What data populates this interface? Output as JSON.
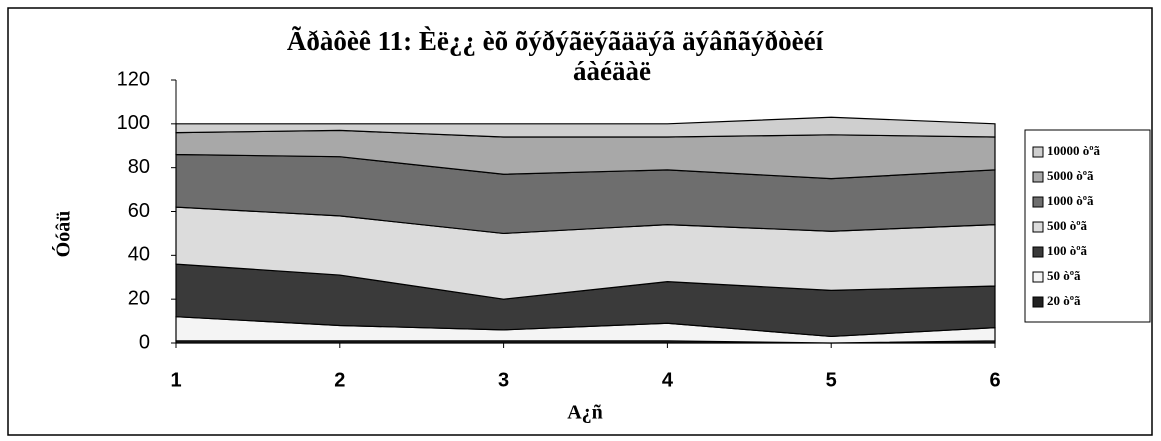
{
  "chart_data": {
    "type": "stacked_area",
    "title": [
      "Ãðàôèê 11: Èë¿¿ èõ õýðýãëýãääýã äýâñãýðòèéí",
      "áàéäàë"
    ],
    "y_label": "Óóâü",
    "x_label": "A¿ñ",
    "x": [
      1,
      2,
      3,
      4,
      5,
      6
    ],
    "xlim": [
      1,
      6
    ],
    "xticks": [
      1,
      2,
      3,
      4,
      5,
      6
    ],
    "ylim": [
      0,
      120
    ],
    "yticks": [
      0,
      20,
      40,
      60,
      80,
      100,
      120
    ],
    "series": [
      {
        "name": "20 òºã",
        "color": "#222222",
        "values": [
          1,
          1,
          1,
          1,
          0,
          1
        ]
      },
      {
        "name": "50 òºã",
        "color": "#f4f4f4",
        "values": [
          11,
          7,
          5,
          8,
          3,
          6
        ]
      },
      {
        "name": "100 òºã",
        "color": "#3a3a3a",
        "values": [
          24,
          23,
          14,
          19,
          21,
          19
        ]
      },
      {
        "name": "500 òºã",
        "color": "#dcdcdc",
        "values": [
          26,
          27,
          30,
          26,
          27,
          28
        ]
      },
      {
        "name": "1000 òºã",
        "color": "#6e6e6e",
        "values": [
          24,
          27,
          27,
          25,
          24,
          25
        ]
      },
      {
        "name": "5000 òºã",
        "color": "#a8a8a8",
        "values": [
          10,
          12,
          17,
          15,
          20,
          15
        ]
      },
      {
        "name": "10000 òºã",
        "color": "#cfcfcf",
        "values": [
          4,
          3,
          6,
          6,
          8,
          6
        ]
      }
    ]
  }
}
